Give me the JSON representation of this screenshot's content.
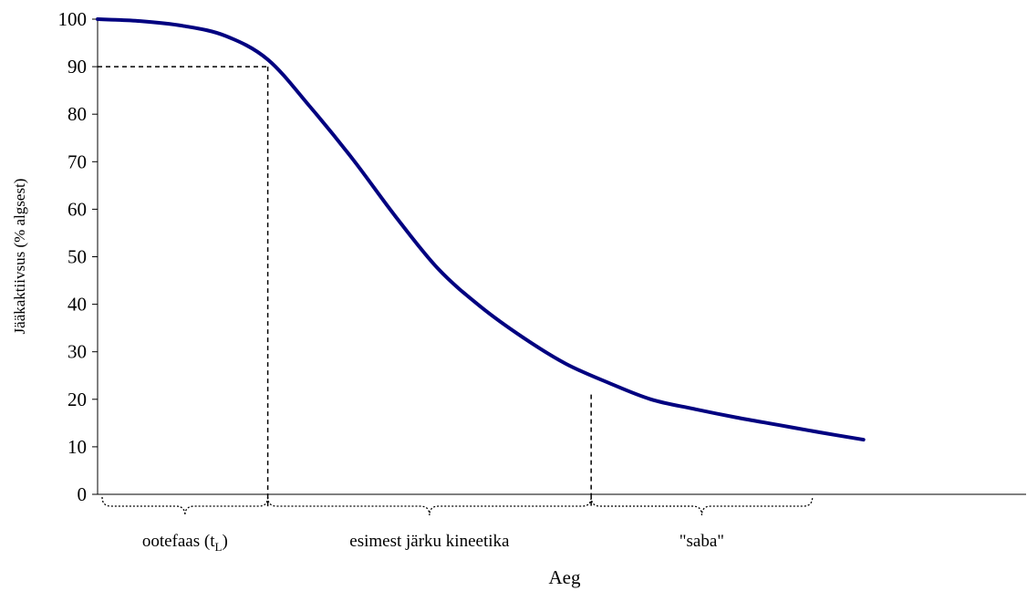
{
  "chart_data": {
    "type": "line",
    "title": "",
    "xlabel": "Aeg",
    "ylabel": "Jääkaktiivsus (% algsest)",
    "ylim": [
      0,
      100
    ],
    "yticks": [
      0,
      10,
      20,
      30,
      40,
      50,
      60,
      70,
      80,
      90,
      100
    ],
    "xlim": [
      0,
      100
    ],
    "grid": false,
    "legend": "none",
    "series": [
      {
        "color": "#000080",
        "x": [
          0,
          5,
          10,
          15,
          20,
          25,
          30,
          35,
          40,
          45,
          50,
          55,
          60,
          65,
          70,
          75,
          80,
          85,
          90
        ],
        "y": [
          100,
          99.6,
          98.6,
          96.5,
          91.5,
          81.5,
          70.5,
          58.5,
          47.5,
          39.5,
          33,
          27.5,
          23.5,
          20,
          18,
          16.2,
          14.6,
          13,
          11.5
        ]
      }
    ],
    "reference_lines": {
      "y90_x": 20,
      "x20_boundary": 58
    },
    "phases": [
      {
        "label": "ootefaas (t",
        "subscript": "L",
        "label_end": ")",
        "x_start": 0,
        "x_end": 20
      },
      {
        "label": "esimest järku kineetika",
        "x_start": 20,
        "x_end": 58
      },
      {
        "label": "\"saba\"",
        "x_start": 58,
        "x_end": 84
      }
    ]
  }
}
